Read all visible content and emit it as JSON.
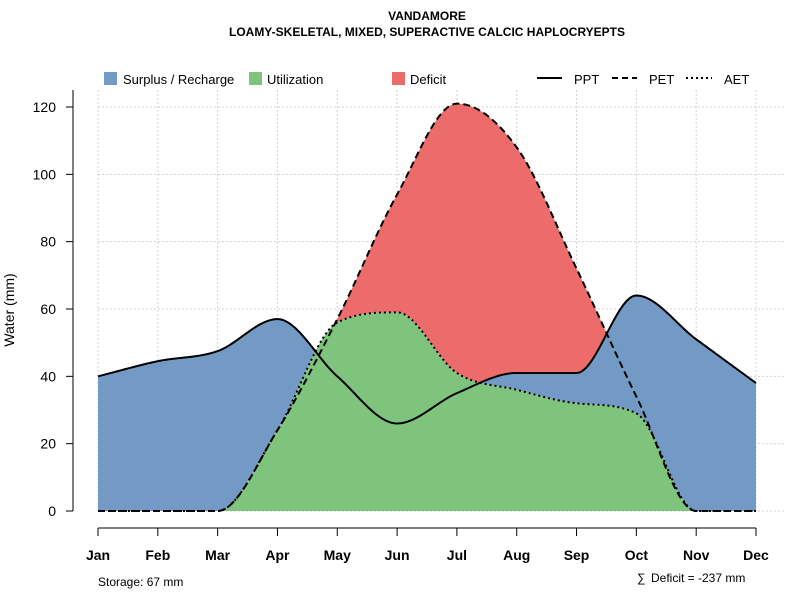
{
  "chart_data": {
    "type": "area",
    "title": "VANDAMORE",
    "subtitle": "LOAMY-SKELETAL, MIXED, SUPERACTIVE CALCIC HAPLOCRYEPTS",
    "xlabel": "",
    "ylabel": "Water (mm)",
    "ylim": [
      0,
      125
    ],
    "yticks": [
      0,
      20,
      40,
      60,
      80,
      100,
      120
    ],
    "grid": true,
    "categories": [
      "Jan",
      "Feb",
      "Mar",
      "Apr",
      "May",
      "Jun",
      "Jul",
      "Aug",
      "Sep",
      "Oct",
      "Nov",
      "Dec"
    ],
    "series": [
      {
        "name": "PPT",
        "style": "solid",
        "values": [
          40,
          44.5,
          47.5,
          57,
          40,
          26,
          35,
          41,
          41,
          64,
          51,
          38
        ]
      },
      {
        "name": "PET",
        "style": "dashed",
        "values": [
          0,
          0,
          0,
          24,
          57,
          94,
          121,
          108,
          72,
          34,
          0,
          0
        ]
      },
      {
        "name": "AET",
        "style": "dotted",
        "values": [
          0,
          0,
          0,
          24,
          56,
          59,
          41,
          36,
          32,
          29,
          0,
          0
        ]
      }
    ],
    "areas": [
      {
        "name": "Surplus / Recharge",
        "color": "#7399c5"
      },
      {
        "name": "Utilization",
        "color": "#7fc47c"
      },
      {
        "name": "Deficit",
        "color": "#ec6c6c"
      }
    ],
    "legend_position": "top",
    "storage": "Storage: 67 mm",
    "deficit_symbol": "∑",
    "deficit": "Deficit = -237 mm"
  }
}
